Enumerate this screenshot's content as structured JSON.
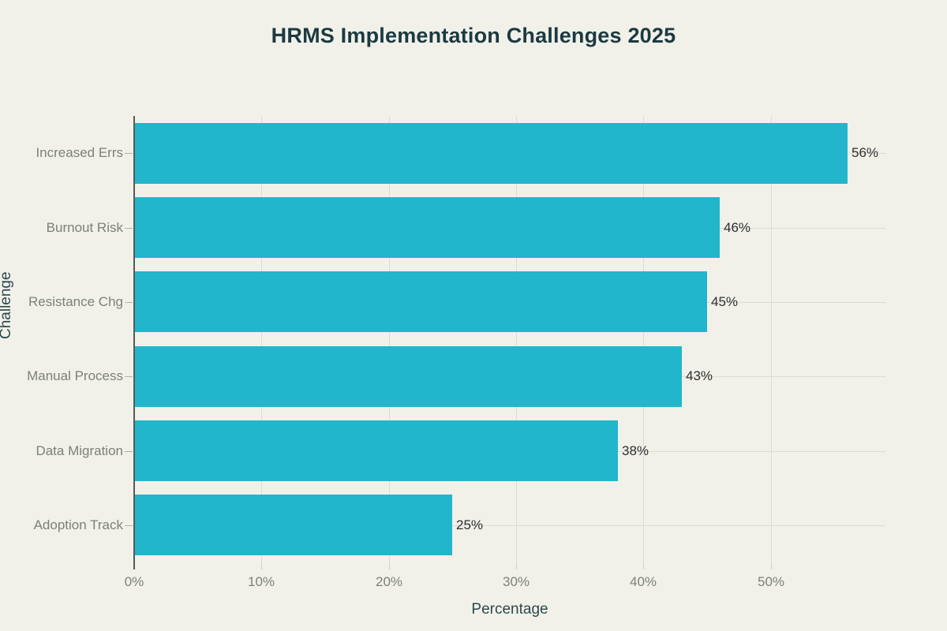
{
  "chart_data": {
    "type": "bar",
    "orientation": "horizontal",
    "title": "HRMS Implementation Challenges 2025",
    "xlabel": "Percentage",
    "ylabel": "Challenge",
    "categories": [
      "Increased Errs",
      "Burnout Risk",
      "Resistance Chg",
      "Manual Process",
      "Data Migration",
      "Adoption Track"
    ],
    "values": [
      56,
      46,
      45,
      43,
      38,
      25
    ],
    "value_labels": [
      "56%",
      "46%",
      "45%",
      "43%",
      "38%",
      "25%"
    ],
    "x_tick_values": [
      0,
      10,
      20,
      30,
      40,
      50
    ],
    "x_tick_labels": [
      "0%",
      "10%",
      "20%",
      "30%",
      "40%",
      "50%"
    ],
    "xlim": [
      0,
      59
    ],
    "grid": true,
    "legend": "none",
    "colors": {
      "background": "#f1f1ea",
      "bar": "#21b6cb",
      "grid": "#dcdbd4",
      "axis_line": "#58585a",
      "x_tick_mark": "#cfcec8",
      "y_tick_mark": "#b3b2ac",
      "tick_label": "#7f7f7b",
      "value_label": "#2e2e2e",
      "title": "#1c3a40",
      "axis_title": "#2b494d"
    }
  }
}
